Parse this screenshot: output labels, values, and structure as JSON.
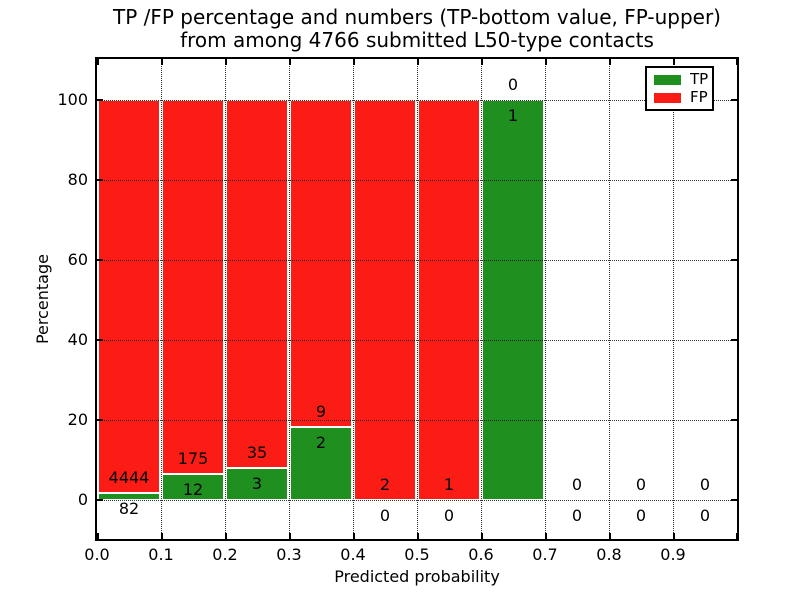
{
  "chart_data": {
    "type": "bar",
    "stacked": true,
    "title_line1": "TP /FP percentage and numbers (TP-bottom value, FP-upper)",
    "title_line2": "from among 4766 submitted L50-type contacts",
    "xlabel": "Predicted probability",
    "ylabel": "Percentage",
    "x_tick_labels": [
      "0.0",
      "0.1",
      "0.2",
      "0.3",
      "0.4",
      "0.5",
      "0.6",
      "0.7",
      "0.8",
      "0.9"
    ],
    "y_ticks": [
      0,
      20,
      40,
      60,
      80,
      100
    ],
    "xlim": [
      0.0,
      1.0
    ],
    "ylim": [
      -10,
      110
    ],
    "bin_width": 0.1,
    "grid": "dotted",
    "legend_position": "upper right",
    "categories": [
      "0.0-0.1",
      "0.1-0.2",
      "0.2-0.3",
      "0.3-0.4",
      "0.4-0.5",
      "0.5-0.6",
      "0.6-0.7",
      "0.7-0.8",
      "0.8-0.9",
      "0.9-1.0"
    ],
    "series": [
      {
        "name": "TP",
        "color": "#1f8f1f",
        "counts": [
          82,
          12,
          3,
          2,
          0,
          0,
          1,
          0,
          0,
          0
        ]
      },
      {
        "name": "FP",
        "color": "#fb1d15",
        "counts": [
          4444,
          175,
          35,
          9,
          2,
          1,
          0,
          0,
          0,
          0
        ]
      }
    ]
  },
  "colors": {
    "tp": "#1f8f1f",
    "fp": "#fb1d15",
    "axis": "#000000",
    "background": "#ffffff"
  }
}
